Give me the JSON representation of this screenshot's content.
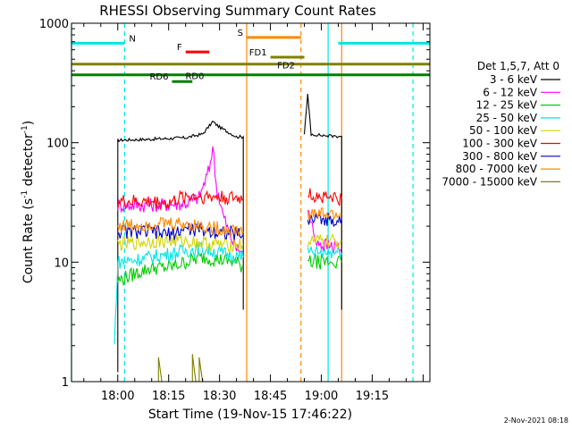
{
  "chart_data": {
    "type": "line",
    "title": "RHESSI Observing Summary Count Rates",
    "xlabel": "Start Time (19-Nov-15 17:46:22)",
    "ylabel_main": "Count Rate (s",
    "ylabel_exp1": "-1",
    "ylabel_mid": " detector",
    "ylabel_exp2": "-1",
    "ylabel_end": ")",
    "y_scale": "log",
    "ylim": [
      1,
      1000
    ],
    "xlim": [
      "17:46:22",
      "19:32:00"
    ],
    "x_ticks": [
      "18:00",
      "18:15",
      "18:30",
      "18:45",
      "19:00",
      "19:15"
    ],
    "y_ticks": [
      "1",
      "10",
      "100",
      "1000"
    ],
    "legend_title": "Det 1,5,7, Att 0",
    "legend_position": "right",
    "series": [
      {
        "name": "3 - 6 keV",
        "color": "#000000",
        "segments": [
          [
            [
              "18:00",
              1.2
            ],
            [
              "18:00",
              105
            ],
            [
              "18:10",
              107
            ],
            [
              "18:20",
              110
            ],
            [
              "18:25",
              118
            ],
            [
              "18:28",
              150
            ],
            [
              "18:30",
              135
            ],
            [
              "18:35",
              112
            ],
            [
              "18:37",
              112
            ],
            [
              "18:37",
              4
            ]
          ],
          [
            [
              "18:55",
              120
            ],
            [
              "18:56",
              250
            ],
            [
              "18:57",
              118
            ],
            [
              "19:00",
              115
            ],
            [
              "19:05",
              113
            ],
            [
              "19:06",
              113
            ],
            [
              "19:06",
              4
            ]
          ]
        ]
      },
      {
        "name": "6 - 12 keV",
        "color": "#ff00ff",
        "segments": [
          [
            [
              "18:00",
              30
            ],
            [
              "18:10",
              30
            ],
            [
              "18:20",
              31
            ],
            [
              "18:24",
              35
            ],
            [
              "18:27",
              60
            ],
            [
              "18:28",
              95
            ],
            [
              "18:29",
              45
            ],
            [
              "18:31",
              25
            ],
            [
              "18:33",
              17
            ],
            [
              "18:35",
              13
            ],
            [
              "18:37",
              12
            ]
          ],
          [
            [
              "18:56",
              28
            ],
            [
              "18:58",
              16
            ],
            [
              "19:00",
              14
            ],
            [
              "19:06",
              13
            ]
          ]
        ]
      },
      {
        "name": "12 - 25 keV",
        "color": "#00cc00",
        "segments": [
          [
            [
              "18:00",
              7
            ],
            [
              "18:05",
              8
            ],
            [
              "18:10",
              9
            ],
            [
              "18:15",
              9
            ],
            [
              "18:20",
              10
            ],
            [
              "18:25",
              11
            ],
            [
              "18:30",
              10.5
            ],
            [
              "18:35",
              10
            ],
            [
              "18:37",
              9
            ]
          ],
          [
            [
              "18:56",
              10
            ],
            [
              "19:00",
              10
            ],
            [
              "19:06",
              10
            ]
          ]
        ]
      },
      {
        "name": "25 - 50 keV",
        "color": "#00e5e5",
        "segments": [
          [
            [
              "17:59",
              2
            ],
            [
              "18:00",
              10
            ],
            [
              "18:10",
              11
            ],
            [
              "18:20",
              12.5
            ],
            [
              "18:25",
              13
            ],
            [
              "18:30",
              12
            ],
            [
              "18:37",
              11
            ]
          ],
          [
            [
              "18:56",
              12
            ],
            [
              "19:00",
              12
            ],
            [
              "19:06",
              12
            ]
          ]
        ]
      },
      {
        "name": "50 - 100 keV",
        "color": "#d4d400",
        "segments": [
          [
            [
              "18:00",
              14
            ],
            [
              "18:10",
              15
            ],
            [
              "18:20",
              15
            ],
            [
              "18:30",
              14
            ],
            [
              "18:37",
              14
            ]
          ],
          [
            [
              "18:56",
              15
            ],
            [
              "19:00",
              15
            ],
            [
              "19:06",
              15
            ]
          ]
        ]
      },
      {
        "name": "100 - 300 keV",
        "color": "#ff0000",
        "segments": [
          [
            [
              "18:00",
              32
            ],
            [
              "18:10",
              32
            ],
            [
              "18:15",
              31
            ],
            [
              "18:20",
              36
            ],
            [
              "18:30",
              35
            ],
            [
              "18:37",
              34
            ]
          ],
          [
            [
              "18:56",
              37
            ],
            [
              "19:00",
              35
            ],
            [
              "19:06",
              34
            ]
          ]
        ]
      },
      {
        "name": "300 - 800 keV",
        "color": "#0000cc",
        "segments": [
          [
            [
              "18:00",
              18
            ],
            [
              "18:10",
              18
            ],
            [
              "18:15",
              17
            ],
            [
              "18:20",
              19
            ],
            [
              "18:30",
              18
            ],
            [
              "18:37",
              17
            ]
          ],
          [
            [
              "18:56",
              22
            ],
            [
              "19:00",
              23
            ],
            [
              "19:06",
              23
            ]
          ]
        ]
      },
      {
        "name": "800 - 7000 keV",
        "color": "#ff8800",
        "segments": [
          [
            [
              "18:00",
              20
            ],
            [
              "18:10",
              21
            ],
            [
              "18:20",
              21
            ],
            [
              "18:30",
              19
            ],
            [
              "18:37",
              18
            ]
          ],
          [
            [
              "18:56",
              25
            ],
            [
              "19:00",
              25
            ],
            [
              "19:06",
              25
            ]
          ]
        ]
      },
      {
        "name": "7000 - 15000 keV",
        "color": "#808000",
        "segments": [
          [
            [
              "18:12",
              1
            ],
            [
              "18:12",
              1.6
            ],
            [
              "18:13",
              1
            ]
          ],
          [
            [
              "18:22",
              1
            ],
            [
              "18:22",
              1.7
            ],
            [
              "18:23",
              1
            ]
          ],
          [
            [
              "18:24",
              1
            ],
            [
              "18:24",
              1.6
            ],
            [
              "18:25",
              1
            ]
          ]
        ]
      }
    ],
    "flags": [
      {
        "label": "N",
        "color": "#00e5e5",
        "segments": [
          [
            "17:46:22",
            "18:02"
          ],
          [
            "19:05",
            "19:32"
          ]
        ],
        "y": 680
      },
      {
        "label": "S",
        "color": "#ff8800",
        "segments": [
          [
            "18:38",
            "18:54"
          ]
        ],
        "y": 760
      },
      {
        "label": "F",
        "color": "#ff0000",
        "segments": [
          [
            "18:20",
            "18:27"
          ]
        ],
        "y": 575
      },
      {
        "label": "FD1",
        "color": "#808000",
        "segments": [
          [
            "18:45",
            "18:55"
          ]
        ],
        "y": 520
      },
      {
        "label": "FD2",
        "color": "#808000",
        "segments": [
          [
            "17:46:22",
            "19:32"
          ]
        ],
        "y": 455
      },
      {
        "label": "RD0",
        "color": "#008000",
        "segments": [
          [
            "17:46:22",
            "19:32"
          ]
        ],
        "y": 370
      },
      {
        "label": "RD6",
        "color": "#008000",
        "segments": [
          [
            "18:16",
            "18:22"
          ]
        ],
        "y": 325
      }
    ],
    "vertical_lines": [
      {
        "time": "17:46:22",
        "color": "#00e5e5",
        "style": "solid"
      },
      {
        "time": "18:02",
        "color": "#00e5e5",
        "style": "dashed"
      },
      {
        "time": "18:38",
        "color": "#ff8800",
        "style": "solid"
      },
      {
        "time": "18:54",
        "color": "#ff8800",
        "style": "dashed"
      },
      {
        "time": "19:02",
        "color": "#00e5e5",
        "style": "solid"
      },
      {
        "time": "19:06",
        "color": "#ff8800",
        "style": "solid"
      },
      {
        "time": "19:27",
        "color": "#00e5e5",
        "style": "dashed"
      }
    ]
  },
  "footer_date": "2-Nov-2021 08:18"
}
